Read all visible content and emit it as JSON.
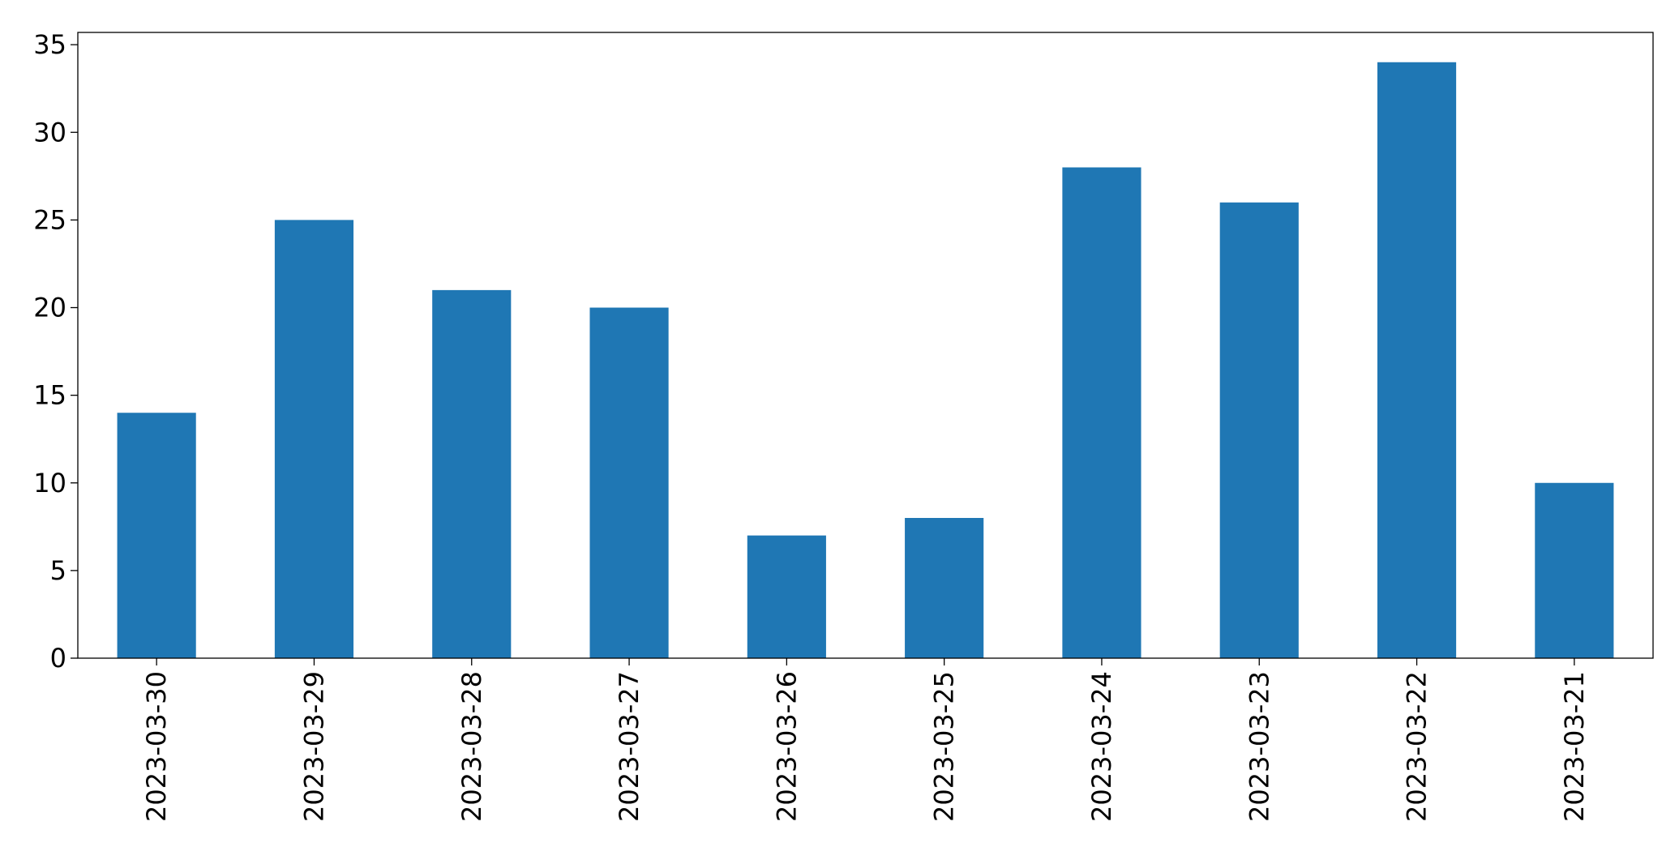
{
  "chart_data": {
    "type": "bar",
    "categories": [
      "2023-03-30",
      "2023-03-29",
      "2023-03-28",
      "2023-03-27",
      "2023-03-26",
      "2023-03-25",
      "2023-03-24",
      "2023-03-23",
      "2023-03-22",
      "2023-03-21"
    ],
    "values": [
      14,
      25,
      21,
      20,
      7,
      8,
      28,
      26,
      34,
      10
    ],
    "color": "#1f77b4",
    "ylim": [
      0,
      35.7
    ],
    "yticks": [
      0,
      5,
      10,
      15,
      20,
      25,
      30,
      35
    ],
    "grid": false
  }
}
